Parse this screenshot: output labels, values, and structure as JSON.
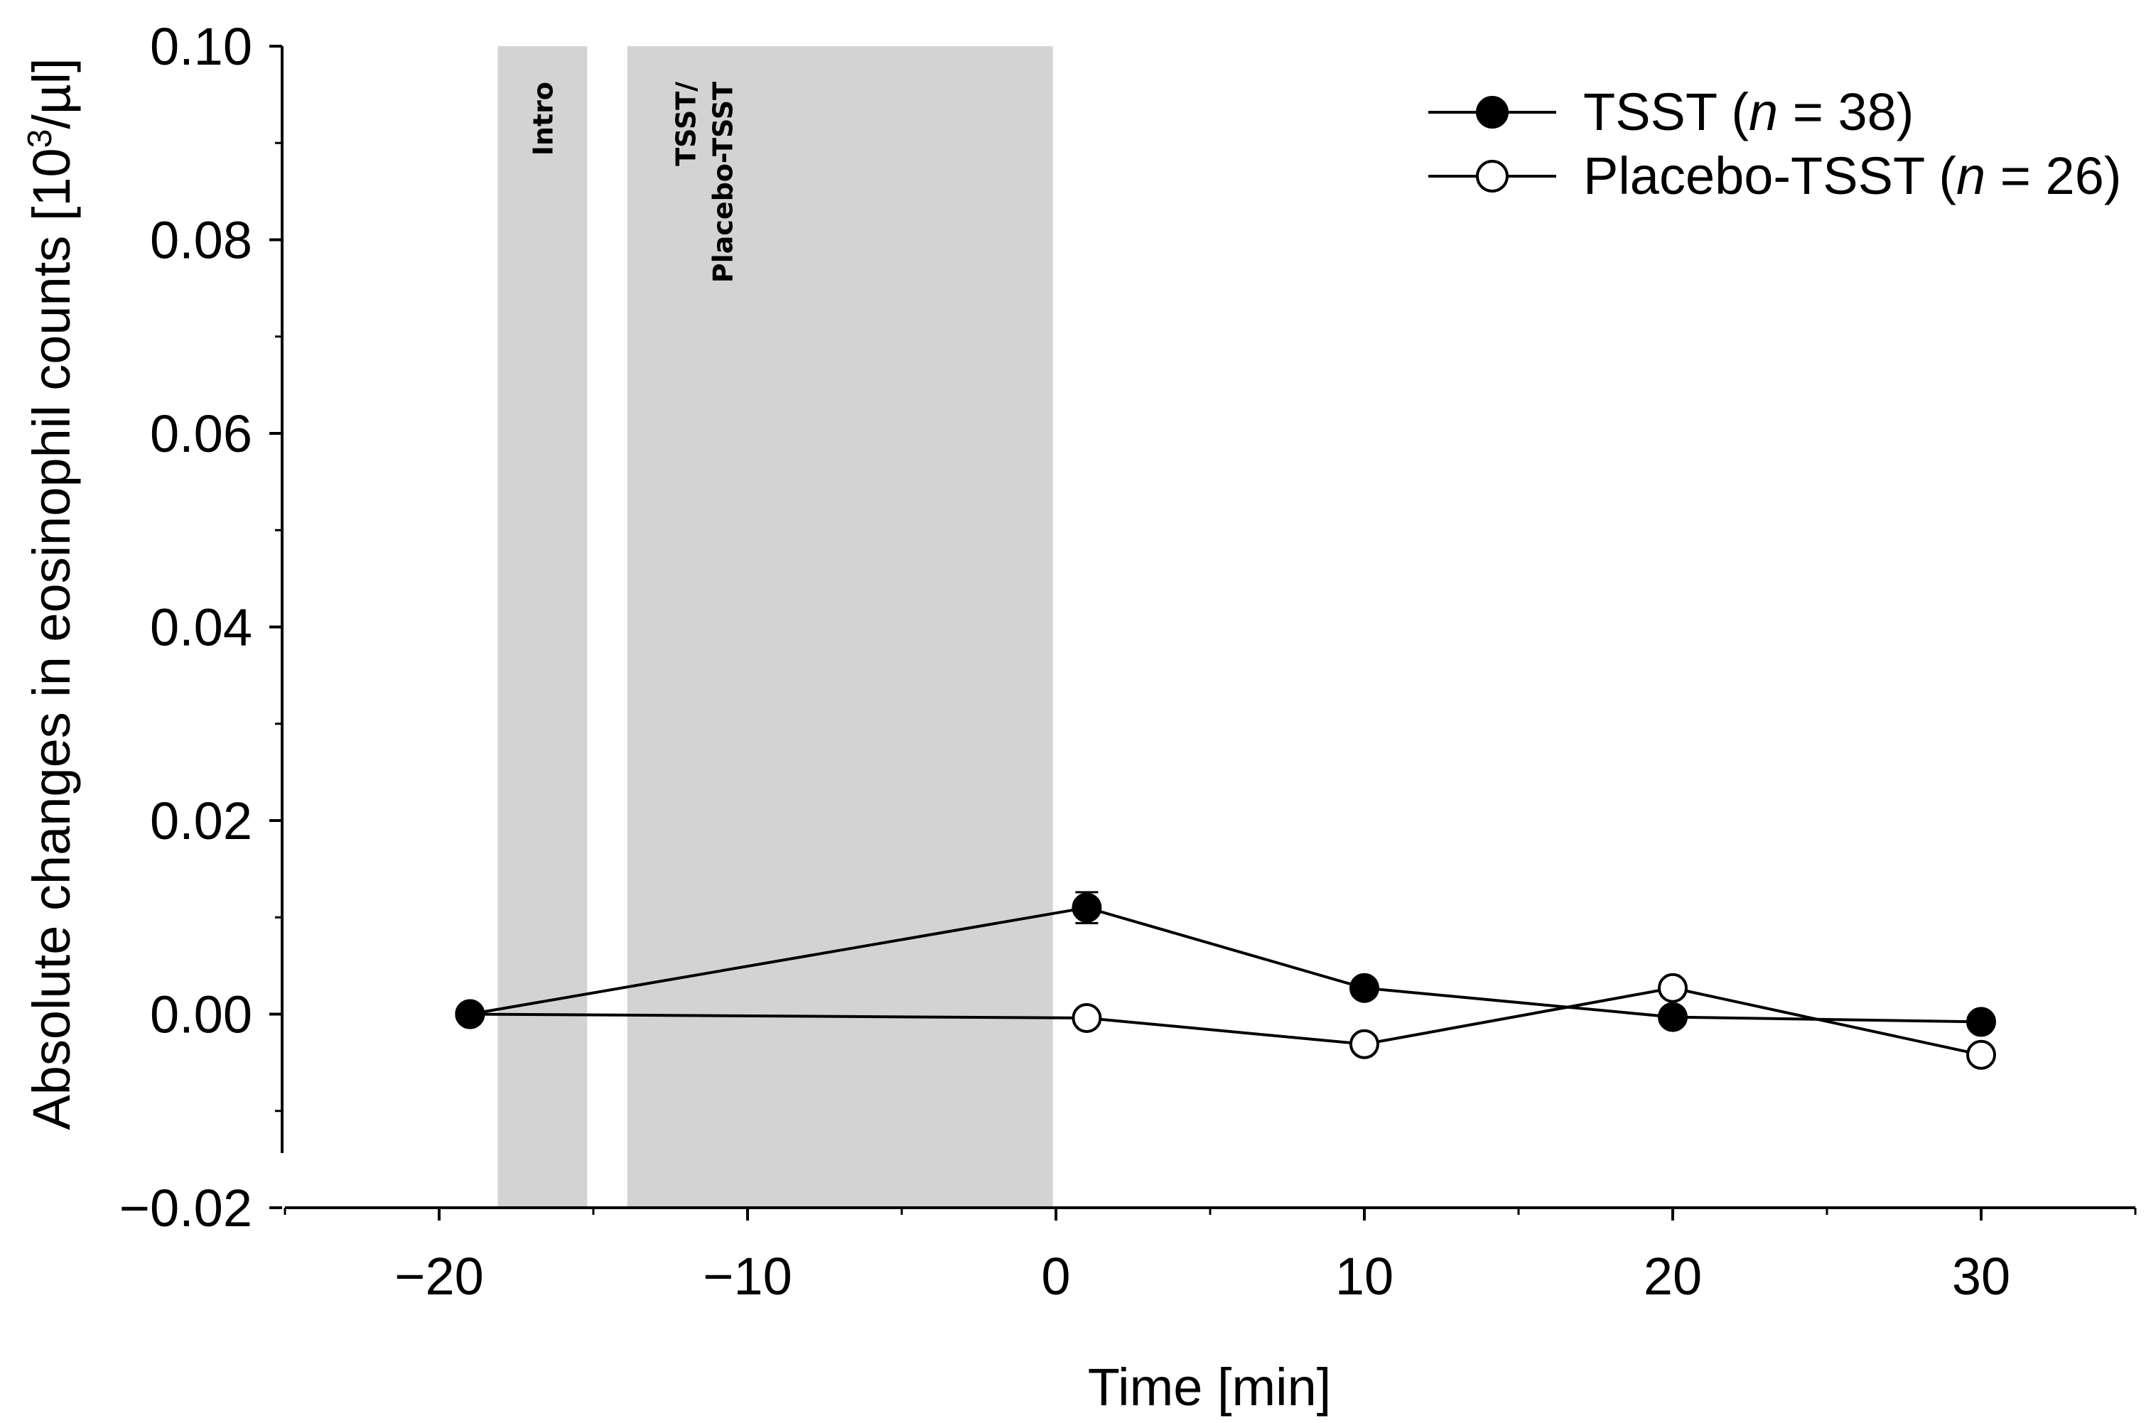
{
  "chart_data": {
    "type": "line",
    "title": "",
    "xlabel": "Time [min]",
    "ylabel_main": "Absolute changes in eosinophil counts [10",
    "ylabel_sup": "3",
    "ylabel_tail": "/µl]",
    "xlim": [
      -25,
      35
    ],
    "ylim": [
      -0.02,
      0.1
    ],
    "x_ticks": [
      -20,
      -10,
      0,
      10,
      20,
      30
    ],
    "x_tick_labels": [
      "−20",
      "−10",
      "0",
      "10",
      "20",
      "30"
    ],
    "y_ticks": [
      -0.02,
      0.0,
      0.02,
      0.04,
      0.06,
      0.08,
      0.1
    ],
    "y_tick_labels": [
      "−0.02",
      "0.00",
      "0.02",
      "0.04",
      "0.06",
      "0.08",
      "0.10"
    ],
    "grid": false,
    "legend_position": "top-right",
    "shaded_regions": [
      {
        "name": "intro",
        "x": [
          -18.1,
          -15.2
        ],
        "label": "Intro"
      },
      {
        "name": "tsst",
        "x": [
          -13.9,
          -0.1
        ],
        "label_line1": "TSST/",
        "label_line2": "Placebo-TSST"
      }
    ],
    "series": [
      {
        "name_prefix": "TSST (",
        "name_italic": "n",
        "name_suffix": " = 38)",
        "marker": "filled-circle",
        "x": [
          -19,
          1,
          10,
          20,
          30
        ],
        "y": [
          0.0,
          0.011,
          0.0027,
          -0.0003,
          -0.0008
        ],
        "err": [
          0,
          0.0016,
          0,
          0,
          0
        ]
      },
      {
        "name_prefix": "Placebo-TSST (",
        "name_italic": "n",
        "name_suffix": " = 26)",
        "marker": "open-circle",
        "x": [
          -19,
          1,
          10,
          20,
          30
        ],
        "y": [
          0.0,
          -0.0004,
          -0.0031,
          0.0027,
          -0.0042
        ],
        "err": [
          0,
          0,
          0,
          0,
          0
        ]
      }
    ]
  }
}
